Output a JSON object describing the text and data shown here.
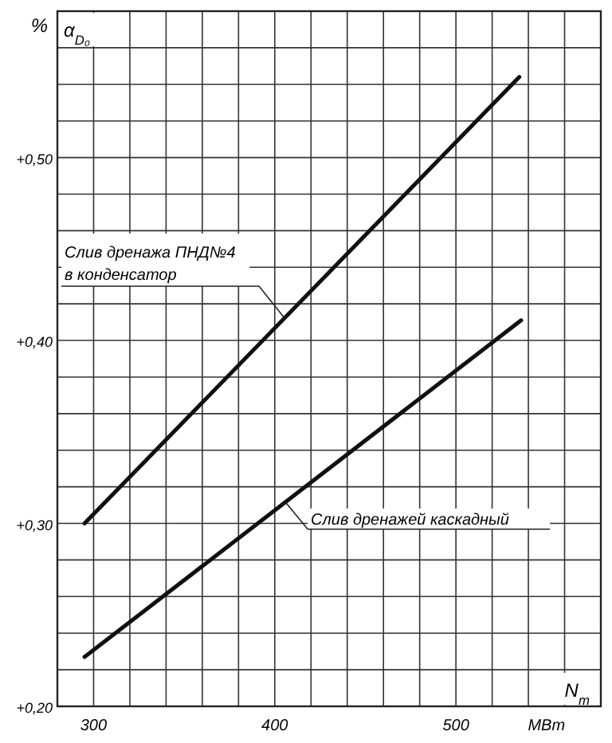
{
  "chart_data": {
    "type": "line",
    "xlabel": "N$_{т}$",
    "ylabel": "α$_{D₀}$",
    "annotations": [
      "%",
      "МВт"
    ],
    "xlim": [
      280,
      580
    ],
    "ylim": [
      0.2,
      0.58
    ],
    "xticks": [
      {
        "value": 280,
        "label": null
      },
      {
        "value": 300,
        "label": "300"
      },
      {
        "value": 320,
        "label": null
      },
      {
        "value": 340,
        "label": null
      },
      {
        "value": 360,
        "label": null
      },
      {
        "value": 380,
        "label": null
      },
      {
        "value": 400,
        "label": "400"
      },
      {
        "value": 420,
        "label": null
      },
      {
        "value": 440,
        "label": null
      },
      {
        "value": 460,
        "label": null
      },
      {
        "value": 480,
        "label": null
      },
      {
        "value": 500,
        "label": "500"
      },
      {
        "value": 520,
        "label": null
      },
      {
        "value": 540,
        "label": null
      },
      {
        "value": 560,
        "label": null
      },
      {
        "value": 580,
        "label": null
      }
    ],
    "yticks": [
      {
        "value": 0.2,
        "label": "+0,20"
      },
      {
        "value": 0.22,
        "label": null
      },
      {
        "value": 0.24,
        "label": null
      },
      {
        "value": 0.26,
        "label": null
      },
      {
        "value": 0.28,
        "label": null
      },
      {
        "value": 0.3,
        "label": "+0,30"
      },
      {
        "value": 0.32,
        "label": null
      },
      {
        "value": 0.34,
        "label": null
      },
      {
        "value": 0.36,
        "label": null
      },
      {
        "value": 0.38,
        "label": null
      },
      {
        "value": 0.4,
        "label": "+0,40"
      },
      {
        "value": 0.42,
        "label": null
      },
      {
        "value": 0.44,
        "label": null
      },
      {
        "value": 0.46,
        "label": null
      },
      {
        "value": 0.48,
        "label": null
      },
      {
        "value": 0.5,
        "label": "+0,50"
      },
      {
        "value": 0.52,
        "label": null
      },
      {
        "value": 0.54,
        "label": null
      },
      {
        "value": 0.56,
        "label": null
      },
      {
        "value": 0.58,
        "label": null
      }
    ],
    "grid": true,
    "series": [
      {
        "name": "Слив дренажа ПНД№4 в конденсатор",
        "color": "#111111",
        "x": [
          295,
          535
        ],
        "values": [
          0.3,
          0.544
        ]
      },
      {
        "name": "Слив дренажей каскадный",
        "color": "#111111",
        "x": [
          295,
          536
        ],
        "values": [
          0.227,
          0.411
        ]
      }
    ]
  }
}
